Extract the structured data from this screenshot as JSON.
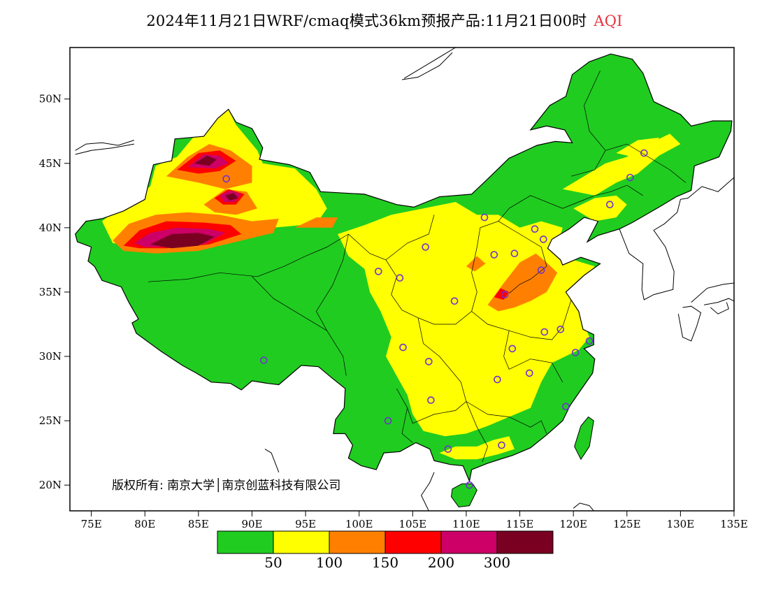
{
  "title": {
    "text": "2024年11月21日WRF/cmaq模式36km预报产品:11月21日00时",
    "aqi": "AQI"
  },
  "copyright": "版权所有: 南京大学│南京创蓝科技有限公司",
  "axes": {
    "lat_labels": [
      "20N",
      "25N",
      "30N",
      "35N",
      "40N",
      "45N",
      "50N"
    ],
    "lat_values": [
      20,
      25,
      30,
      35,
      40,
      45,
      50
    ],
    "lon_labels": [
      "75E",
      "80E",
      "85E",
      "90E",
      "95E",
      "100E",
      "105E",
      "110E",
      "115E",
      "120E",
      "125E",
      "130E",
      "135E"
    ],
    "lon_values": [
      75,
      80,
      85,
      90,
      95,
      100,
      105,
      110,
      115,
      120,
      125,
      130,
      135
    ],
    "lon_range": [
      73,
      135
    ],
    "lat_range": [
      18,
      54
    ]
  },
  "legend": {
    "colors": [
      "#20cc20",
      "#ffff00",
      "#ff8000",
      "#ff0000",
      "#cc0066",
      "#7a0022"
    ],
    "labels": [
      "50",
      "100",
      "150",
      "200",
      "300"
    ]
  },
  "colors": {
    "good": "#20cc20",
    "moderate": "#ffff00",
    "usg": "#ff8000",
    "unhealthy": "#ff0000",
    "very_unhealthy": "#cc0066",
    "hazardous": "#7a0022",
    "station": "#7030d0"
  },
  "stations": [
    {
      "lon": 87.6,
      "lat": 43.8
    },
    {
      "lon": 91.1,
      "lat": 29.7
    },
    {
      "lon": 101.8,
      "lat": 36.6
    },
    {
      "lon": 103.8,
      "lat": 36.1
    },
    {
      "lon": 106.2,
      "lat": 38.5
    },
    {
      "lon": 111.7,
      "lat": 40.8
    },
    {
      "lon": 112.6,
      "lat": 37.9
    },
    {
      "lon": 114.5,
      "lat": 38.0
    },
    {
      "lon": 116.4,
      "lat": 39.9
    },
    {
      "lon": 117.2,
      "lat": 39.1
    },
    {
      "lon": 117.0,
      "lat": 36.7
    },
    {
      "lon": 113.6,
      "lat": 34.8
    },
    {
      "lon": 108.9,
      "lat": 34.3
    },
    {
      "lon": 104.1,
      "lat": 30.7
    },
    {
      "lon": 106.5,
      "lat": 29.6
    },
    {
      "lon": 106.7,
      "lat": 26.6
    },
    {
      "lon": 102.7,
      "lat": 25.0
    },
    {
      "lon": 108.3,
      "lat": 22.8
    },
    {
      "lon": 113.3,
      "lat": 23.1
    },
    {
      "lon": 110.3,
      "lat": 20.0
    },
    {
      "lon": 112.9,
      "lat": 28.2
    },
    {
      "lon": 114.3,
      "lat": 30.6
    },
    {
      "lon": 115.9,
      "lat": 28.7
    },
    {
      "lon": 117.3,
      "lat": 31.9
    },
    {
      "lon": 118.8,
      "lat": 32.1
    },
    {
      "lon": 120.2,
      "lat": 30.3
    },
    {
      "lon": 121.5,
      "lat": 31.2
    },
    {
      "lon": 119.3,
      "lat": 26.1
    },
    {
      "lon": 123.4,
      "lat": 41.8
    },
    {
      "lon": 125.3,
      "lat": 43.9
    },
    {
      "lon": 126.6,
      "lat": 45.8
    }
  ]
}
